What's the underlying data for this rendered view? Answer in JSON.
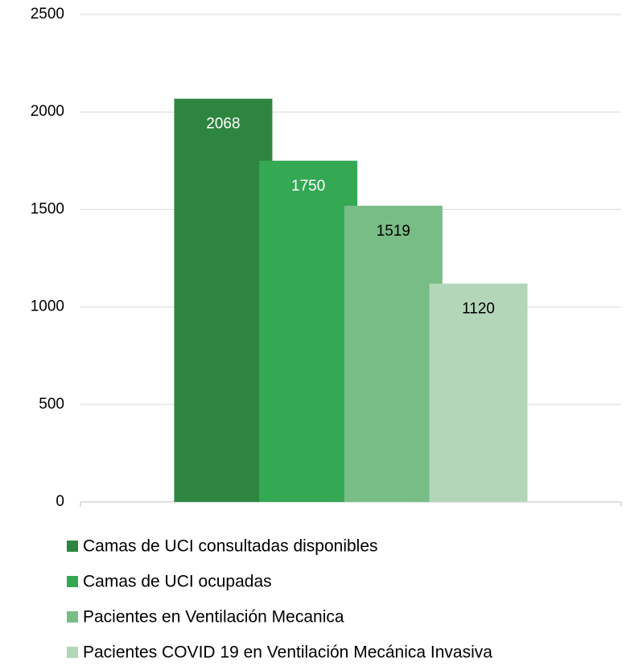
{
  "chart_data": {
    "type": "bar",
    "categories": [
      null
    ],
    "series": [
      {
        "name": "Camas de UCI consultadas disponibles",
        "color": "#2e8540",
        "label_color": "#ffffff",
        "values": [
          2068
        ]
      },
      {
        "name": "Camas de UCI ocupadas",
        "color": "#34a853",
        "label_color": "#ffffff",
        "values": [
          1750
        ]
      },
      {
        "name": "Pacientes en Ventilación Mecanica",
        "color": "#78bd86",
        "label_color": "#000000",
        "values": [
          1519
        ]
      },
      {
        "name": "Pacientes COVID 19 en Ventilación Mecánica Invasiva",
        "color": "#b3d6b9",
        "label_color": "#000000",
        "values": [
          1120
        ]
      }
    ],
    "ylim": [
      0,
      2500
    ],
    "yticks": [
      0,
      500,
      1000,
      1500,
      2000,
      2500
    ],
    "grid": true,
    "legend": "bottom"
  }
}
